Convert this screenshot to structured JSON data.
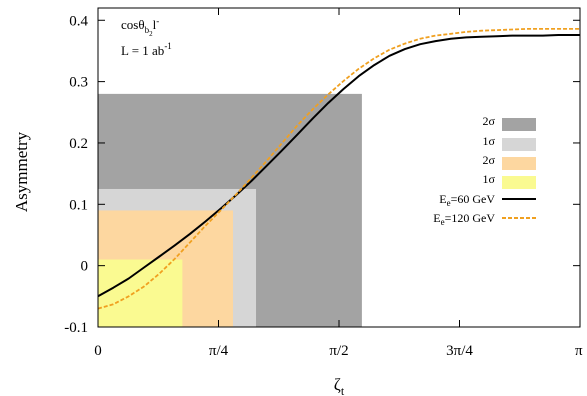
{
  "chart_data": {
    "type": "line",
    "title": "",
    "xlabel": "ζ",
    "xlabel_sub": "t",
    "ylabel": "Asymmetry",
    "xlim": [
      0,
      3.14159
    ],
    "ylim": [
      -0.1,
      0.42
    ],
    "grid": false,
    "legend_position": "right",
    "x_ticks": [
      {
        "value": 0,
        "label": "0"
      },
      {
        "value": 0.7854,
        "label": "π/4"
      },
      {
        "value": 1.5708,
        "label": "π/2"
      },
      {
        "value": 2.3562,
        "label": "3π/4"
      },
      {
        "value": 3.14159,
        "label": "π"
      }
    ],
    "y_ticks": [
      {
        "value": -0.1,
        "label": "-0.1"
      },
      {
        "value": 0,
        "label": "0"
      },
      {
        "value": 0.1,
        "label": "0.1"
      },
      {
        "value": 0.2,
        "label": "0.2"
      },
      {
        "value": 0.3,
        "label": "0.3"
      },
      {
        "value": 0.4,
        "label": "0.4"
      }
    ],
    "annotations": [
      {
        "main": "cosθ",
        "sub": "b",
        "subsub": "2",
        "rest": "l",
        "sup": "-"
      },
      {
        "text": "L = 1 ab",
        "sup": "-1"
      }
    ],
    "regions": [
      {
        "name": "2σ",
        "color": "#a3a3a3",
        "x_max": 1.72,
        "y_max": 0.28
      },
      {
        "name": "1σ",
        "color": "#d6d6d6",
        "x_max": 1.03,
        "y_max": 0.125
      },
      {
        "name": "2σ",
        "color": "#fdd7a0",
        "x_max": 0.88,
        "y_max": 0.09
      },
      {
        "name": "1σ",
        "color": "#fafa91",
        "x_max": 0.55,
        "y_max": 0.01
      }
    ],
    "series": [
      {
        "name": "E",
        "name_sub": "e",
        "name_rest": "=60 GeV",
        "color": "#000000",
        "style": "solid",
        "x": [
          0,
          0.1,
          0.2,
          0.3,
          0.4,
          0.5,
          0.6,
          0.7,
          0.8,
          0.9,
          1.0,
          1.1,
          1.2,
          1.3,
          1.4,
          1.5,
          1.6,
          1.7,
          1.8,
          1.9,
          2.0,
          2.1,
          2.2,
          2.3,
          2.4,
          2.5,
          2.6,
          2.7,
          2.8,
          2.9,
          3.0,
          3.14
        ],
        "y": [
          -0.05,
          -0.036,
          -0.021,
          -0.003,
          0.015,
          0.033,
          0.052,
          0.072,
          0.093,
          0.115,
          0.138,
          0.163,
          0.188,
          0.214,
          0.24,
          0.265,
          0.288,
          0.309,
          0.327,
          0.342,
          0.353,
          0.361,
          0.366,
          0.37,
          0.372,
          0.373,
          0.374,
          0.375,
          0.375,
          0.375,
          0.376,
          0.376
        ]
      },
      {
        "name": "E",
        "name_sub": "e",
        "name_rest": "=120 GeV",
        "color": "#f0a020",
        "style": "dashed",
        "x": [
          0,
          0.1,
          0.2,
          0.3,
          0.4,
          0.5,
          0.6,
          0.7,
          0.8,
          0.9,
          1.0,
          1.1,
          1.2,
          1.3,
          1.4,
          1.5,
          1.6,
          1.7,
          1.8,
          1.9,
          2.0,
          2.1,
          2.2,
          2.3,
          2.4,
          2.5,
          2.6,
          2.7,
          2.8,
          2.9,
          3.0,
          3.14
        ],
        "y": [
          -0.07,
          -0.063,
          -0.05,
          -0.034,
          -0.013,
          0.011,
          0.038,
          0.065,
          0.09,
          0.116,
          0.143,
          0.171,
          0.2,
          0.229,
          0.255,
          0.279,
          0.301,
          0.321,
          0.338,
          0.352,
          0.362,
          0.37,
          0.375,
          0.378,
          0.381,
          0.383,
          0.384,
          0.385,
          0.386,
          0.386,
          0.386,
          0.386
        ]
      }
    ]
  }
}
